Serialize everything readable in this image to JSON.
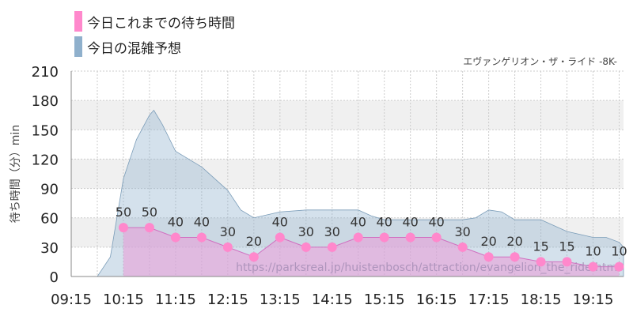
{
  "legend": {
    "actual_label": "今日これまでの待ち時間",
    "actual_color": "#ff88cc",
    "forecast_label": "今日の混雑予想",
    "forecast_color": "#8fb0cc"
  },
  "subtitle": "エヴァンゲリオン・ザ・ライド -8K-",
  "watermark": "https://parksreal.jp/huistenbosch/attraction/evangelion_the_ride.html",
  "chart_data": {
    "type": "area",
    "title": "",
    "ylabel": "待ち時間（分）min",
    "xlabel": "",
    "ylim": [
      0,
      210
    ],
    "yticks": [
      0,
      30,
      60,
      90,
      120,
      150,
      180,
      210
    ],
    "xlim": [
      "09:15",
      "19:50"
    ],
    "xticks": [
      "09:15",
      "10:15",
      "11:15",
      "12:15",
      "13:15",
      "14:15",
      "15:15",
      "16:15",
      "17:15",
      "18:15",
      "19:15"
    ],
    "grid": true,
    "series": [
      {
        "name": "今日の混雑予想",
        "color": "#8fb0cc",
        "x": [
          "09:15",
          "09:45",
          "10:00",
          "10:15",
          "10:30",
          "10:45",
          "10:50",
          "11:00",
          "11:15",
          "11:45",
          "12:15",
          "12:30",
          "12:45",
          "13:15",
          "13:45",
          "14:15",
          "14:45",
          "15:00",
          "15:15",
          "15:45",
          "16:15",
          "16:45",
          "17:00",
          "17:15",
          "17:30",
          "17:45",
          "18:15",
          "18:45",
          "19:15",
          "19:30",
          "19:45",
          "19:50"
        ],
        "values": [
          0,
          0,
          20,
          100,
          140,
          165,
          170,
          155,
          128,
          112,
          88,
          68,
          60,
          66,
          68,
          68,
          68,
          62,
          58,
          58,
          58,
          58,
          60,
          68,
          66,
          58,
          58,
          46,
          40,
          40,
          35,
          30
        ]
      },
      {
        "name": "今日これまでの待ち時間",
        "color": "#ff88cc",
        "x": [
          "10:15",
          "10:45",
          "11:15",
          "11:45",
          "12:15",
          "12:45",
          "13:15",
          "13:45",
          "14:15",
          "14:45",
          "15:15",
          "15:45",
          "16:15",
          "16:45",
          "17:15",
          "17:45",
          "18:15",
          "18:45",
          "19:15",
          "19:45"
        ],
        "values": [
          50,
          50,
          40,
          40,
          30,
          20,
          40,
          30,
          30,
          40,
          40,
          40,
          40,
          30,
          20,
          20,
          15,
          15,
          10,
          10
        ]
      }
    ]
  }
}
